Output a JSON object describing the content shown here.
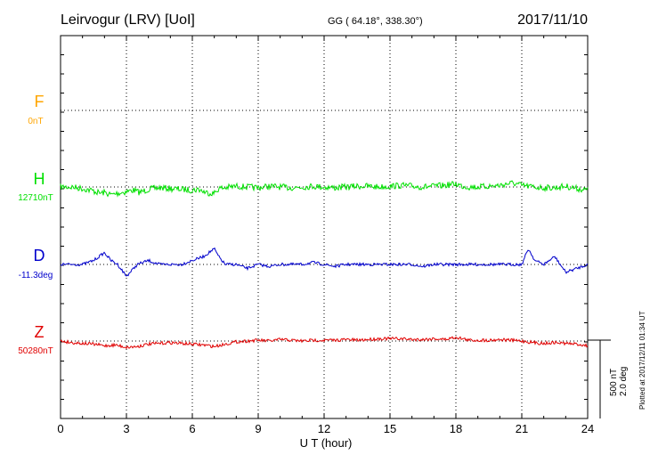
{
  "header": {
    "title": "Leirvogur (LRV)  [UoI]",
    "coords": "GG ( 64.18°, 338.30°)",
    "date": "2017/11/10"
  },
  "components": [
    {
      "key": "F",
      "label": "F",
      "baseline": "0nT",
      "color": "#ffa500"
    },
    {
      "key": "H",
      "label": "H",
      "baseline": "12710nT",
      "color": "#00e000"
    },
    {
      "key": "D",
      "label": "D",
      "baseline": "-11.3deg",
      "color": "#0000cc"
    },
    {
      "key": "Z",
      "label": "Z",
      "baseline": "50280nT",
      "color": "#e00000"
    }
  ],
  "scale": {
    "nT": "500 nT",
    "deg": "2.0 deg"
  },
  "footer": {
    "plotted": "Plotted at 2017/12/11 01:34 UT"
  },
  "chart_data": {
    "type": "line",
    "xlabel": "U T (hour)",
    "xlim": [
      0,
      24
    ],
    "xticks": [
      0,
      3,
      6,
      9,
      12,
      15,
      18,
      21,
      24
    ],
    "grid": true,
    "series": [
      {
        "name": "H",
        "unit": "nT",
        "x": [
          0,
          0.5,
          1,
          1.5,
          1.8,
          2,
          2.3,
          2.6,
          3,
          3.3,
          3.6,
          4,
          4.5,
          5,
          5.5,
          6,
          6.3,
          6.6,
          7,
          7.2,
          7.5,
          8,
          8.5,
          9,
          9.5,
          10,
          10.5,
          11,
          11.5,
          12,
          12.5,
          13,
          13.5,
          14,
          14.5,
          15,
          15.5,
          16,
          16.5,
          17,
          17.5,
          18,
          18.3,
          18.6,
          19,
          19.5,
          20,
          20.3,
          20.6,
          21,
          21.5,
          22,
          22.5,
          23,
          23.5,
          24
        ],
        "y": [
          0,
          0,
          -10,
          -25,
          -40,
          -35,
          -50,
          -40,
          -30,
          -20,
          -35,
          -15,
          -5,
          -10,
          -15,
          -20,
          -15,
          -35,
          -40,
          -10,
          -5,
          5,
          0,
          -5,
          5,
          0,
          -5,
          0,
          5,
          0,
          -5,
          0,
          5,
          5,
          0,
          5,
          10,
          5,
          0,
          5,
          10,
          20,
          5,
          0,
          0,
          5,
          10,
          20,
          25,
          10,
          0,
          -5,
          -5,
          5,
          -10,
          -20
        ]
      },
      {
        "name": "D",
        "unit": "deg",
        "x": [
          0,
          0.5,
          1,
          1.5,
          2,
          2.3,
          2.6,
          3,
          3.5,
          4,
          4.5,
          5,
          5.5,
          6,
          6.5,
          7,
          7.2,
          7.5,
          8,
          8.5,
          9,
          9.5,
          10,
          10.5,
          11,
          11.5,
          12,
          12.5,
          13,
          13.5,
          14,
          14.5,
          15,
          15.5,
          16,
          16.5,
          17,
          17.5,
          18,
          18.5,
          19,
          19.5,
          20,
          20.5,
          21,
          21.3,
          21.6,
          22,
          22.5,
          23,
          23.5,
          24
        ],
        "y": [
          0,
          0,
          0,
          0.1,
          0.3,
          0.1,
          0,
          -0.3,
          0,
          0.1,
          0,
          0,
          0,
          0.1,
          0.2,
          0.4,
          0.2,
          0,
          0,
          -0.1,
          0,
          -0.05,
          0,
          0,
          0,
          0.05,
          0,
          -0.05,
          0,
          0,
          0,
          0,
          0,
          0,
          0,
          -0.05,
          0,
          0,
          0,
          0,
          0,
          0,
          0,
          0,
          0,
          0.4,
          0.1,
          0,
          0.2,
          -0.2,
          -0.1,
          0
        ]
      },
      {
        "name": "Z",
        "unit": "nT",
        "x": [
          0,
          0.5,
          1,
          1.5,
          2,
          2.5,
          3,
          3.5,
          4,
          4.5,
          5,
          5.5,
          6,
          6.5,
          7,
          7.5,
          8,
          8.5,
          9,
          9.5,
          10,
          10.5,
          11,
          11.5,
          12,
          12.5,
          13,
          13.5,
          14,
          14.5,
          15,
          15.5,
          16,
          16.5,
          17,
          17.5,
          18,
          18.3,
          18.6,
          19,
          19.5,
          20,
          20.5,
          21,
          21.5,
          22,
          22.5,
          23,
          23.5,
          24
        ],
        "y": [
          0,
          -10,
          -15,
          -20,
          -30,
          -25,
          -40,
          -35,
          -20,
          -15,
          -10,
          -15,
          -20,
          -25,
          -35,
          -20,
          -5,
          0,
          5,
          0,
          10,
          5,
          0,
          5,
          5,
          5,
          10,
          5,
          10,
          15,
          15,
          15,
          10,
          10,
          15,
          10,
          25,
          15,
          5,
          5,
          5,
          10,
          5,
          0,
          -10,
          -15,
          -10,
          -15,
          -20,
          -30
        ]
      }
    ]
  }
}
